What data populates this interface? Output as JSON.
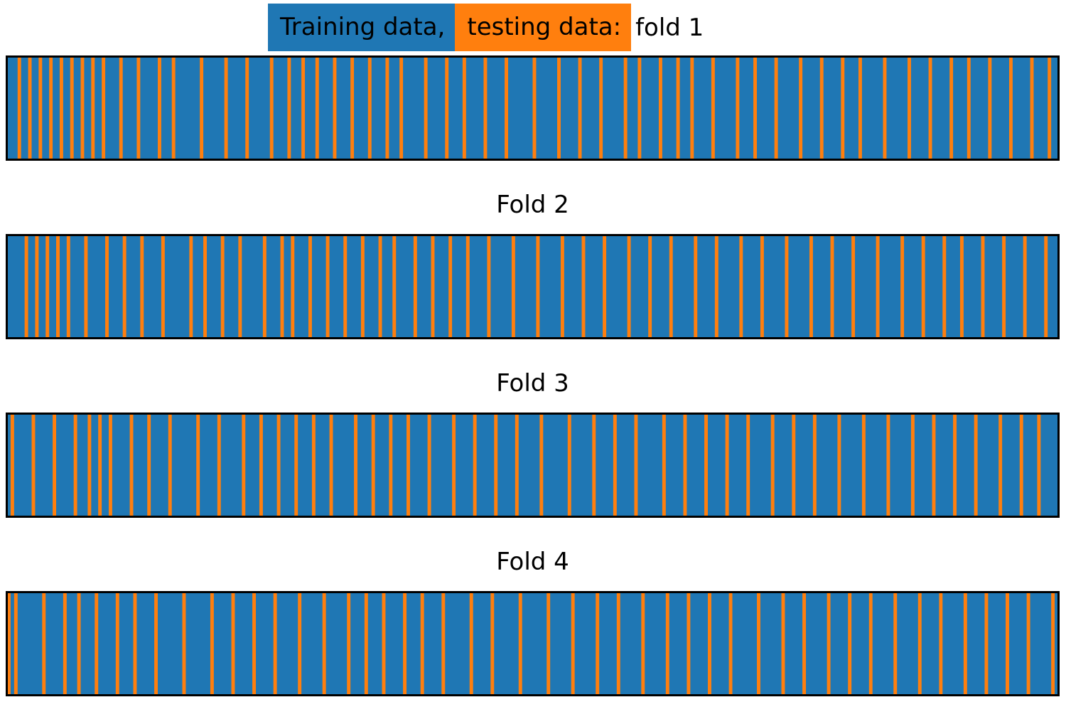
{
  "chart_data": {
    "type": "heatmap",
    "description_kind": "k-fold assignment strips",
    "colors": {
      "train": "#1f77b4",
      "test": "#ff7f0e",
      "border": "#000000"
    },
    "legend": {
      "train_label": "Training data,",
      "test_label": "testing data:",
      "first_fold_label": "fold 1"
    },
    "n_samples": 300,
    "folds": [
      {
        "title": "fold 1",
        "test_indices": [
          3,
          6,
          9,
          12,
          15,
          18,
          21,
          24,
          27,
          32,
          37,
          43,
          47,
          55,
          62,
          68,
          75,
          80,
          84,
          88,
          93,
          98,
          103,
          108,
          112,
          119,
          125,
          130,
          136,
          142,
          150,
          157,
          163,
          169,
          176,
          180,
          186,
          191,
          195,
          201,
          208,
          213,
          219,
          226,
          232,
          238,
          243,
          250,
          257,
          263,
          269,
          274,
          280,
          286,
          292,
          297
        ]
      },
      {
        "title": "Fold 2",
        "test_indices": [
          5,
          8,
          11,
          14,
          17,
          22,
          28,
          33,
          38,
          44,
          52,
          56,
          61,
          66,
          73,
          78,
          81,
          86,
          91,
          96,
          101,
          106,
          110,
          116,
          121,
          126,
          131,
          137,
          144,
          151,
          158,
          164,
          170,
          177,
          183,
          189,
          196,
          202,
          209,
          215,
          222,
          229,
          235,
          241,
          248,
          255,
          261,
          267,
          272,
          278,
          284,
          290,
          296
        ]
      },
      {
        "title": "Fold 3",
        "test_indices": [
          1,
          7,
          13,
          19,
          23,
          26,
          29,
          35,
          40,
          46,
          54,
          60,
          67,
          72,
          77,
          82,
          87,
          92,
          99,
          104,
          109,
          114,
          120,
          127,
          133,
          139,
          145,
          152,
          160,
          167,
          173,
          179,
          187,
          193,
          199,
          205,
          211,
          218,
          224,
          230,
          237,
          244,
          251,
          258,
          264,
          270,
          276,
          283,
          289,
          294
        ]
      },
      {
        "title": "Fold 4",
        "test_indices": [
          0,
          2,
          10,
          16,
          20,
          25,
          31,
          36,
          42,
          50,
          58,
          64,
          70,
          76,
          83,
          90,
          97,
          102,
          107,
          113,
          118,
          124,
          132,
          138,
          146,
          154,
          161,
          168,
          174,
          181,
          188,
          194,
          200,
          206,
          214,
          221,
          227,
          234,
          240,
          246,
          253,
          260,
          266,
          273,
          279,
          285,
          291,
          298
        ]
      }
    ]
  }
}
